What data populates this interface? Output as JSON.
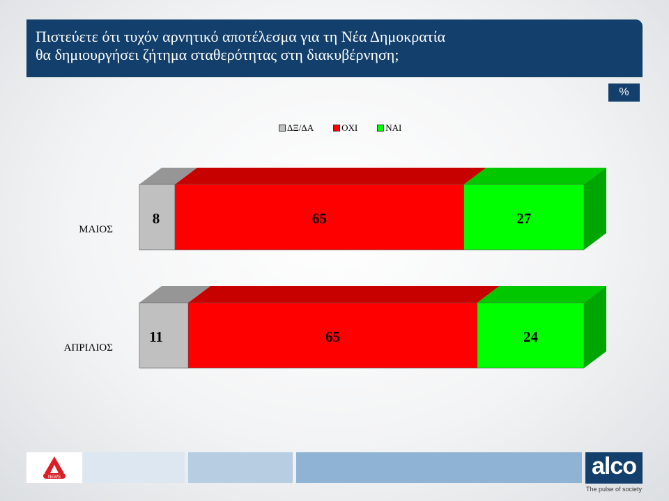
{
  "title": {
    "line1": "Πιστεύετε ότι τυχόν αρνητικό αποτέλεσμα για τη Νέα Δημοκρατία",
    "line2": "θα δημιουργήσει ζήτημα  σταθερότητας στη διακυβέρνηση;"
  },
  "unit_badge": "%",
  "colors": {
    "header_bg": "#123f6b",
    "dk_na": "#c0c0c0",
    "no": "#ff0000",
    "yes": "#00ff00"
  },
  "chart_data": {
    "type": "bar",
    "orientation": "horizontal",
    "stacked": true,
    "style": "3d",
    "categories": [
      "ΜΑΙΟΣ",
      "ΑΠΡΙΛΙΟΣ"
    ],
    "series": [
      {
        "name": "ΔΞ/ΔΑ",
        "values": [
          8,
          11
        ],
        "color": "#c0c0c0"
      },
      {
        "name": "ΟΧΙ",
        "values": [
          65,
          65
        ],
        "color": "#ff0000"
      },
      {
        "name": "ΝΑΙ",
        "values": [
          27,
          24
        ],
        "color": "#00ff00"
      }
    ],
    "xlim": [
      0,
      100
    ],
    "legend": "top",
    "data_labels": true
  },
  "footer": {
    "brand": "alco",
    "tagline": "The pulse of society",
    "news_logo_text": "NEWS"
  }
}
